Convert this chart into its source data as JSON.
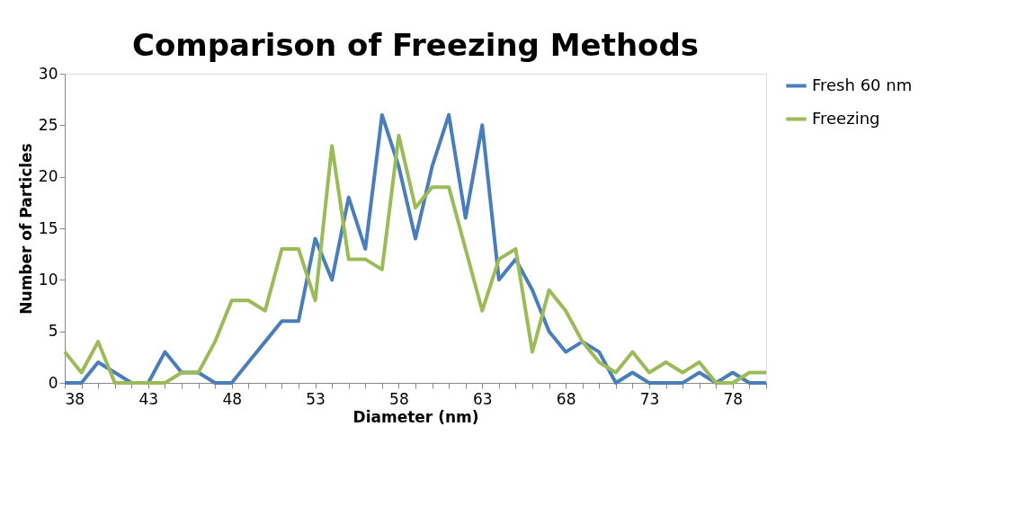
{
  "chart_data": {
    "type": "line",
    "title": "Comparison of Freezing Methods",
    "xlabel": "Diameter (nm)",
    "ylabel": "Number of Particles",
    "x": [
      38,
      39,
      40,
      41,
      42,
      43,
      44,
      45,
      46,
      47,
      48,
      49,
      50,
      51,
      52,
      53,
      54,
      55,
      56,
      57,
      58,
      59,
      60,
      61,
      62,
      63,
      64,
      65,
      66,
      67,
      68,
      69,
      70,
      71,
      72,
      73,
      74,
      75,
      76,
      77,
      78,
      79,
      80
    ],
    "series": [
      {
        "name": "Fresh 60 nm",
        "color": "#4a7ebb",
        "values": [
          0,
          0,
          2,
          1,
          0,
          0,
          3,
          1,
          1,
          0,
          0,
          2,
          4,
          6,
          6,
          14,
          10,
          18,
          13,
          26,
          21,
          14,
          21,
          26,
          16,
          25,
          10,
          12,
          9,
          5,
          3,
          4,
          3,
          0,
          1,
          0,
          0,
          0,
          1,
          0,
          1,
          0,
          0
        ]
      },
      {
        "name": "Freezing",
        "color": "#9bbb59",
        "values": [
          3,
          1,
          4,
          0,
          0,
          0,
          0,
          1,
          1,
          4,
          8,
          8,
          7,
          13,
          13,
          8,
          23,
          12,
          12,
          11,
          24,
          17,
          19,
          19,
          13,
          7,
          12,
          13,
          3,
          9,
          7,
          4,
          2,
          1,
          3,
          1,
          2,
          1,
          2,
          0,
          0,
          1,
          1
        ]
      }
    ],
    "xlim": [
      38,
      80
    ],
    "xticks": [
      38,
      {
        "value": 39,
        "label": null
      },
      {
        "value": 40,
        "label": null
      },
      {
        "value": 41,
        "label": null
      },
      {
        "value": 42,
        "label": null
      },
      43,
      {
        "value": 44,
        "label": null
      },
      {
        "value": 45,
        "label": null
      },
      {
        "value": 46,
        "label": null
      },
      {
        "value": 47,
        "label": null
      },
      48,
      {
        "value": 49,
        "label": null
      },
      {
        "value": 50,
        "label": null
      },
      {
        "value": 51,
        "label": null
      },
      {
        "value": 52,
        "label": null
      },
      53,
      {
        "value": 54,
        "label": null
      },
      {
        "value": 55,
        "label": null
      },
      {
        "value": 56,
        "label": null
      },
      {
        "value": 57,
        "label": null
      },
      58,
      {
        "value": 59,
        "label": null
      },
      {
        "value": 60,
        "label": null
      },
      {
        "value": 61,
        "label": null
      },
      {
        "value": 62,
        "label": null
      },
      63,
      {
        "value": 64,
        "label": null
      },
      {
        "value": 65,
        "label": null
      },
      {
        "value": 66,
        "label": null
      },
      {
        "value": 67,
        "label": null
      },
      68,
      {
        "value": 69,
        "label": null
      },
      {
        "value": 70,
        "label": null
      },
      {
        "value": 71,
        "label": null
      },
      {
        "value": 72,
        "label": null
      },
      73,
      {
        "value": 74,
        "label": null
      },
      {
        "value": 75,
        "label": null
      },
      {
        "value": 76,
        "label": null
      },
      {
        "value": 77,
        "label": null
      },
      78,
      {
        "value": 79,
        "label": null
      },
      {
        "value": 80,
        "label": null
      }
    ],
    "ylim": [
      0,
      30
    ],
    "yticks": [
      0,
      5,
      10,
      15,
      20,
      25,
      30
    ],
    "grid": false,
    "legend": "right",
    "marker": "none",
    "line_style": "solid"
  }
}
